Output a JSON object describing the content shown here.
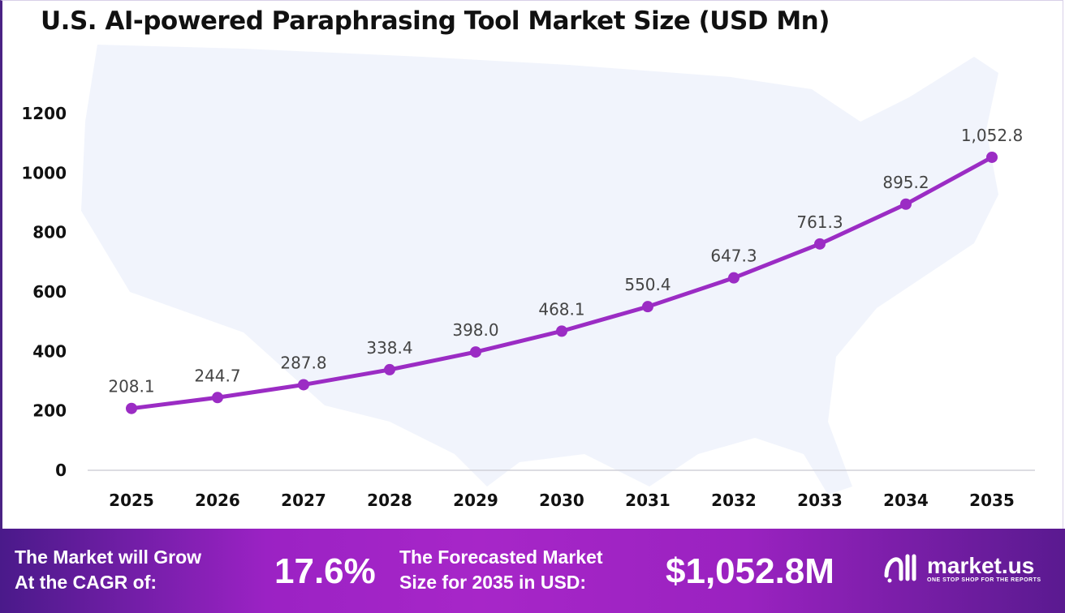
{
  "chart_data": {
    "type": "line",
    "title": "U.S. AI-powered Paraphrasing Tool Market Size (USD Mn)",
    "categories": [
      "2025",
      "2026",
      "2027",
      "2028",
      "2029",
      "2030",
      "2031",
      "2032",
      "2033",
      "2034",
      "2035"
    ],
    "values": [
      208.1,
      244.7,
      287.8,
      338.4,
      398.0,
      468.1,
      550.4,
      647.3,
      761.3,
      895.2,
      1052.8
    ],
    "labels": [
      "208.1",
      "244.7",
      "287.8",
      "338.4",
      "398.0",
      "468.1",
      "550.4",
      "647.3",
      "761.3",
      "895.2",
      "1,052.8"
    ],
    "yticks": [
      0,
      200,
      400,
      600,
      800,
      1000,
      1200
    ],
    "ylim": [
      0,
      1200
    ],
    "grid": false,
    "line_color": "#9b2cc4"
  },
  "footer": {
    "cagr_text_1": "The Market will Grow",
    "cagr_text_2": "At the CAGR of:",
    "cagr_value": "17.6%",
    "forecast_text_1": "The Forecasted Market",
    "forecast_text_2": "Size for 2035 in USD:",
    "forecast_value": "$1,052.8M",
    "logo_name": "market.us",
    "logo_tagline": "ONE STOP SHOP FOR THE REPORTS"
  }
}
